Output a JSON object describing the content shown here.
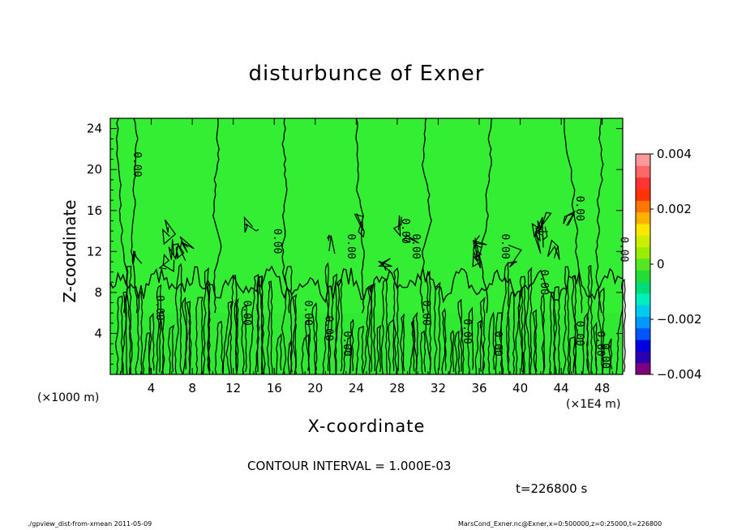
{
  "chart_data": {
    "type": "contour",
    "title": "disturbunce of Exner",
    "xlabel": "X-coordinate",
    "ylabel": "Z-coordinate",
    "x_unit_left": "(×1000 m)",
    "x_unit_right": "(×1E4 m)",
    "x_ticks": [
      4,
      8,
      12,
      16,
      20,
      24,
      28,
      32,
      36,
      40,
      44,
      48
    ],
    "y_ticks": [
      4,
      8,
      12,
      16,
      20,
      24
    ],
    "xlim": [
      0,
      50
    ],
    "ylim": [
      0,
      25
    ],
    "contour_labels": [
      "0.00"
    ],
    "colorbar": {
      "min": -0.004,
      "max": 0.004,
      "tick_labels": [
        "0.004",
        "0.002",
        "0",
        "−0.002",
        "−0.004"
      ],
      "tick_values": [
        0.004,
        0.002,
        0,
        -0.002,
        -0.004
      ],
      "colors": [
        "#7f007f",
        "#2a00b0",
        "#0000e0",
        "#0055ff",
        "#0099ff",
        "#00ccee",
        "#00eebb",
        "#00dd77",
        "#22dd33",
        "#55e822",
        "#99ee00",
        "#ccee00",
        "#ffe600",
        "#ffb000",
        "#ff7700",
        "#ff3300",
        "#ff3333",
        "#ff6666",
        "#ff9999"
      ]
    },
    "fill_color": "#33ee33",
    "contour_interval": "CONTOUR INTERVAL = 1.000E-03",
    "time": "t=226800 s"
  },
  "footer": {
    "left": "./gpview_dist-from-xmean  2011-05-09",
    "right": "MarsCond_Exner.nc@Exner,x=0:500000,z=0:25000,t=226800"
  }
}
